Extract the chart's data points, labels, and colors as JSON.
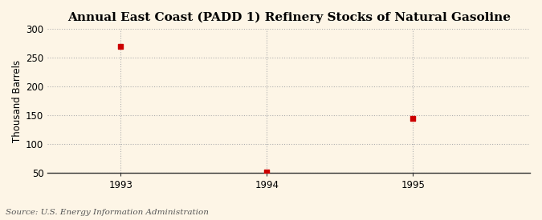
{
  "title": "Annual East Coast (PADD 1) Refinery Stocks of Natural Gasoline",
  "ylabel": "Thousand Barrels",
  "source": "Source: U.S. Energy Information Administration",
  "x_values": [
    1993,
    1994,
    1995
  ],
  "y_values": [
    269,
    52,
    144
  ],
  "ylim": [
    50,
    300
  ],
  "yticks": [
    50,
    100,
    150,
    200,
    250,
    300
  ],
  "xlim": [
    1992.5,
    1995.8
  ],
  "xticks": [
    1993,
    1994,
    1995
  ],
  "marker_color": "#cc0000",
  "marker_size": 5,
  "background_color": "#fdf5e6",
  "grid_color": "#b0b0b0",
  "title_fontsize": 11,
  "label_fontsize": 8.5,
  "tick_fontsize": 8.5,
  "source_fontsize": 7.5
}
